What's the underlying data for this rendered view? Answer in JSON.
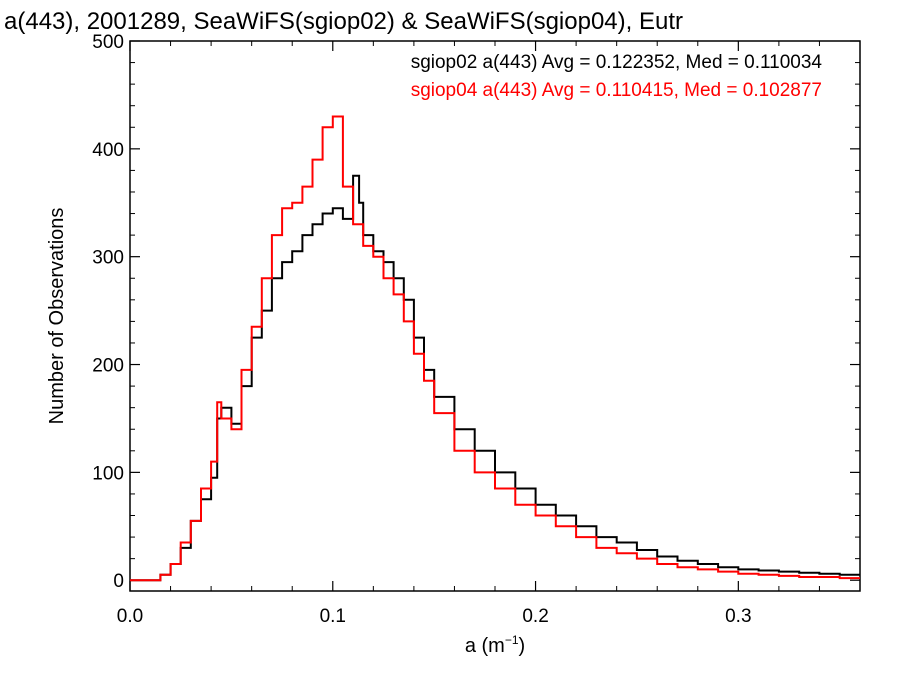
{
  "chart_data": {
    "type": "line",
    "title": "a(443), 2001289, SeaWiFS(sgiop02) & SeaWiFS(sgiop04), Eutr",
    "xlabel_base": "a (m",
    "xlabel_sup": "−1",
    "xlabel_end": ")",
    "ylabel": "Number of Observations",
    "xlim": [
      0.0,
      0.36
    ],
    "ylim": [
      -10,
      500
    ],
    "xticks": [
      0.0,
      0.1,
      0.2,
      0.3
    ],
    "xtick_labels": [
      "0.0",
      "0.1",
      "0.2",
      "0.3"
    ],
    "yticks": [
      0,
      100,
      200,
      300,
      400,
      500
    ],
    "ytick_labels": [
      "0",
      "100",
      "200",
      "300",
      "400",
      "500"
    ],
    "legend_position": "top-right",
    "series": [
      {
        "name": "sgiop02",
        "label": "sgiop02 a(443) Avg = 0.122352, Med = 0.110034",
        "color": "#000000",
        "x": [
          0.0,
          0.01,
          0.015,
          0.02,
          0.025,
          0.03,
          0.035,
          0.04,
          0.043,
          0.045,
          0.05,
          0.055,
          0.06,
          0.065,
          0.07,
          0.075,
          0.08,
          0.085,
          0.09,
          0.095,
          0.1,
          0.105,
          0.11,
          0.113,
          0.115,
          0.12,
          0.125,
          0.13,
          0.135,
          0.14,
          0.145,
          0.15,
          0.16,
          0.17,
          0.18,
          0.19,
          0.2,
          0.21,
          0.22,
          0.23,
          0.24,
          0.25,
          0.26,
          0.27,
          0.28,
          0.29,
          0.3,
          0.31,
          0.32,
          0.33,
          0.34,
          0.35,
          0.36
        ],
        "y": [
          0,
          0,
          5,
          15,
          30,
          55,
          75,
          95,
          150,
          160,
          145,
          180,
          225,
          250,
          280,
          295,
          305,
          320,
          330,
          340,
          345,
          335,
          375,
          350,
          320,
          305,
          295,
          280,
          260,
          225,
          195,
          170,
          140,
          120,
          100,
          85,
          70,
          60,
          50,
          40,
          35,
          28,
          22,
          18,
          15,
          12,
          10,
          9,
          8,
          7,
          6,
          5,
          5
        ]
      },
      {
        "name": "sgiop04",
        "label": "sgiop04 a(443) Avg = 0.110415, Med = 0.102877",
        "color": "#ff0000",
        "x": [
          0.0,
          0.01,
          0.015,
          0.02,
          0.025,
          0.03,
          0.035,
          0.04,
          0.043,
          0.045,
          0.05,
          0.055,
          0.06,
          0.065,
          0.07,
          0.075,
          0.08,
          0.085,
          0.09,
          0.095,
          0.1,
          0.105,
          0.11,
          0.115,
          0.12,
          0.125,
          0.13,
          0.135,
          0.14,
          0.145,
          0.15,
          0.16,
          0.17,
          0.18,
          0.19,
          0.2,
          0.21,
          0.22,
          0.23,
          0.24,
          0.25,
          0.26,
          0.27,
          0.28,
          0.29,
          0.3,
          0.31,
          0.32,
          0.33,
          0.34,
          0.35,
          0.36
        ],
        "y": [
          0,
          0,
          5,
          15,
          35,
          55,
          85,
          110,
          165,
          150,
          140,
          195,
          235,
          280,
          320,
          345,
          350,
          365,
          390,
          420,
          430,
          365,
          330,
          310,
          300,
          280,
          265,
          240,
          210,
          185,
          155,
          120,
          100,
          85,
          70,
          60,
          50,
          40,
          30,
          25,
          20,
          15,
          12,
          10,
          8,
          6,
          5,
          4,
          3,
          3,
          2,
          2
        ]
      }
    ]
  }
}
